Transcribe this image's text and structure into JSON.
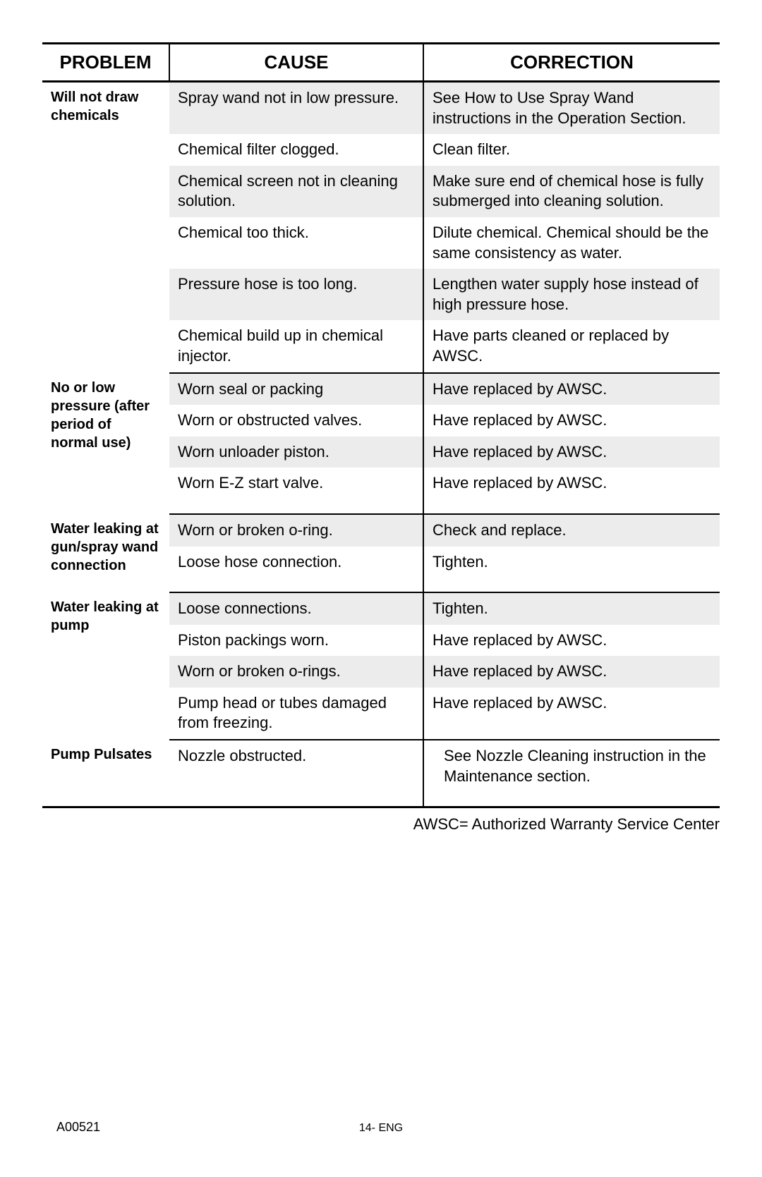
{
  "headers": {
    "problem": "PROBLEM",
    "cause": "CAUSE",
    "correction": "CORRECTION"
  },
  "sections": [
    {
      "problem": "Will not draw chemicals",
      "rows": [
        {
          "cause": "Spray wand not in low pressure.",
          "correction": "See How to Use Spray Wand instructions in the Operation Section.",
          "shade": true
        },
        {
          "cause": "Chemical filter clogged.",
          "correction": "Clean filter.",
          "shade": false
        },
        {
          "cause": "Chemical screen not in cleaning solution.",
          "correction": "Make sure end of chemical hose is fully submerged into cleaning solution.",
          "shade": true
        },
        {
          "cause": "Chemical too thick.",
          "correction": "Dilute chemical. Chemical should be the same consistency as water.",
          "shade": false
        },
        {
          "cause": "Pressure hose is too long.",
          "correction": "Lengthen water supply hose instead of high pressure hose.",
          "shade": true
        },
        {
          "cause": "Chemical build up in chemical injector.",
          "correction": "Have parts cleaned or replaced by AWSC.",
          "shade": false
        }
      ]
    },
    {
      "problem": "No or low pressure (after period of normal use)",
      "rows": [
        {
          "cause": "Worn seal or packing",
          "correction": "Have replaced by AWSC.",
          "shade": true
        },
        {
          "cause": "Worn or obstructed valves.",
          "correction": "Have replaced by AWSC.",
          "shade": false
        },
        {
          "cause": "Worn unloader piston.",
          "correction": "Have replaced by AWSC.",
          "shade": true
        },
        {
          "cause": "Worn E-Z start valve.",
          "correction": "Have replaced by AWSC.",
          "shade": false
        }
      ],
      "extra_pad": true
    },
    {
      "problem": "Water leaking at gun/spray wand connection",
      "rows": [
        {
          "cause": "Worn or broken o-ring.",
          "correction": "Check and replace.",
          "shade": true
        },
        {
          "cause": "Loose hose connection.",
          "correction": "Tighten.",
          "shade": false
        }
      ],
      "extra_pad": true
    },
    {
      "problem": "Water leaking at pump",
      "rows": [
        {
          "cause": "Loose connections.",
          "correction": "Tighten.",
          "shade": true
        },
        {
          "cause": "Piston packings worn.",
          "correction": "Have replaced by AWSC.",
          "shade": false
        },
        {
          "cause": "Worn or broken o-rings.",
          "correction": "Have replaced by AWSC.",
          "shade": true
        },
        {
          "cause": "Pump head or tubes damaged from freezing.",
          "correction": "Have replaced by AWSC.",
          "shade": false
        }
      ]
    },
    {
      "problem": "Pump Pulsates",
      "rows": [
        {
          "cause": "Nozzle obstructed.",
          "correction": "See Nozzle Cleaning instruction in the Maintenance section.",
          "shade": false
        }
      ],
      "extra_pad": true,
      "last": true
    }
  ],
  "footnote": "AWSC= Authorized Warranty Service Center",
  "footer_left": "A00521",
  "footer_center": "14- ENG"
}
